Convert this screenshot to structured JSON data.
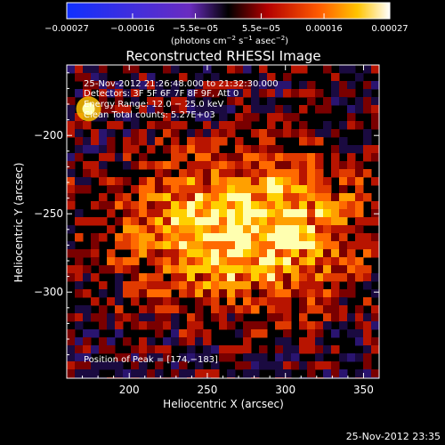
{
  "chart_data": {
    "type": "heatmap",
    "title": "Reconstructed RHESSI Image",
    "xlabel": "Heliocentric X (arcsec)",
    "ylabel": "Heliocentric Y (arcsec)",
    "xlim": [
      160,
      360
    ],
    "ylim": [
      -355,
      -155
    ],
    "x_ticks": [
      {
        "value": 200,
        "label": "200"
      },
      {
        "value": 250,
        "label": "250"
      },
      {
        "value": 300,
        "label": "300"
      },
      {
        "value": 350,
        "label": "350"
      }
    ],
    "y_ticks": [
      {
        "value": -200,
        "label": "−200"
      },
      {
        "value": -250,
        "label": "−250"
      },
      {
        "value": -300,
        "label": "−300"
      }
    ],
    "colorbar": {
      "range": [
        -0.00027,
        0.00027
      ],
      "ticks": [
        {
          "value": -0.00027,
          "label": "−0.00027"
        },
        {
          "value": -0.00016,
          "label": "−0.00016"
        },
        {
          "value": -5.5e-05,
          "label": "−5.5e−05"
        },
        {
          "value": 5.5e-05,
          "label": "5.5e−05"
        },
        {
          "value": 0.00016,
          "label": "0.00016"
        },
        {
          "value": 0.00027,
          "label": "0.00027"
        }
      ],
      "unit_label": {
        "prefix": "(photons cm",
        "exp1": "−2",
        "mid": " s",
        "exp2": "−1",
        "mid2": " asec",
        "exp3": "−2",
        "suffix": ")"
      }
    },
    "annotations": {
      "time_range": "25-Nov-2012 21:26:48.000 to 21:32:30.000",
      "detectors": "Detectors: 3F 5F 6F 7F 8F 9F, Att 0",
      "energy_range": "Energy Range: 12.0 − 25.0 keV",
      "method_counts": "Clean    Total counts: 5.27E+03",
      "peak": "Position of Peak = [174,−183]"
    },
    "peak": {
      "x": 174,
      "y": -183
    },
    "grid": false
  },
  "footer": {
    "timestamp": "25-Nov-2012 23:35"
  }
}
